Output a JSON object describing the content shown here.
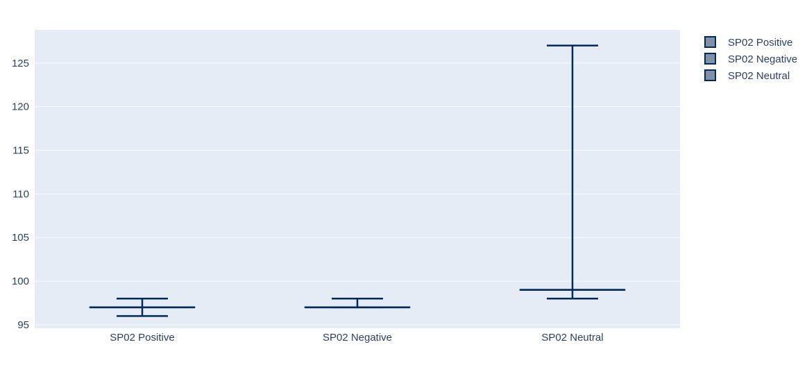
{
  "colors": {
    "plot_bg": "#e5ecf6",
    "grid": "#ffffff",
    "box_line": "#002a5c",
    "box_fill": "#8091a8",
    "text": "#2a3f5f"
  },
  "chart_data": {
    "type": "box",
    "title": "",
    "xlabel": "",
    "ylabel": "",
    "ylim": [
      94.6,
      128.8
    ],
    "yticks": [
      95,
      100,
      105,
      110,
      115,
      120,
      125
    ],
    "grid": true,
    "legend_position": "top-right",
    "categories": [
      "SP02 Positive",
      "SP02 Negative",
      "SP02 Neutral"
    ],
    "series": [
      {
        "name": "SP02 Positive",
        "category": "SP02 Positive",
        "min": 96,
        "q1": 97,
        "median": 97,
        "q3": 97,
        "max": 98
      },
      {
        "name": "SP02 Negative",
        "category": "SP02 Negative",
        "min": 97,
        "q1": 97,
        "median": 97,
        "q3": 97,
        "max": 98
      },
      {
        "name": "SP02 Neutral",
        "category": "SP02 Neutral",
        "min": 98,
        "q1": 99,
        "median": 99,
        "q3": 99,
        "max": 127
      }
    ]
  }
}
